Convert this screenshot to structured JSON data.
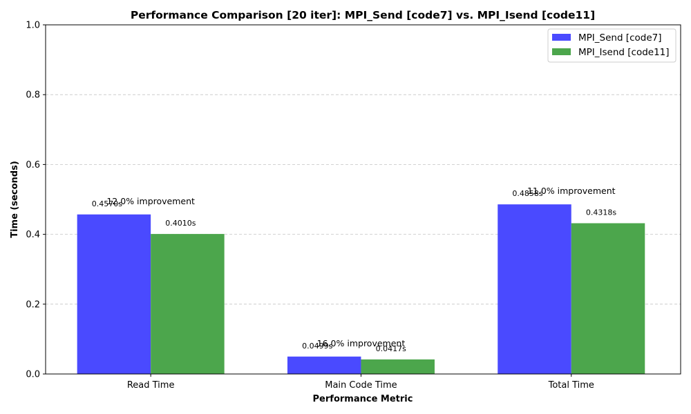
{
  "chart_data": {
    "type": "bar",
    "title": "Performance Comparison [20 iter]: MPI_Send [code7] vs. MPI_Isend [code11]",
    "xlabel": "Performance Metric",
    "ylabel": "Time (seconds)",
    "categories": [
      "Read Time",
      "Main Code Time",
      "Total Time"
    ],
    "series": [
      {
        "name": "MPI_Send [code7]",
        "color": "#4a4aff",
        "values": [
          0.457,
          0.0499,
          0.4858
        ],
        "labels": [
          "0.4570s",
          "0.0499s",
          "0.4858s"
        ]
      },
      {
        "name": "MPI_Isend [code11]",
        "color": "#4ca64c",
        "values": [
          0.401,
          0.0417,
          0.4318
        ],
        "labels": [
          "0.4010s",
          "0.0417s",
          "0.4318s"
        ]
      }
    ],
    "annotations": [
      "12.0% improvement",
      "16.0% improvement",
      "11.0% improvement"
    ],
    "ylim": [
      0,
      1.0
    ],
    "yticks": [
      0.0,
      0.2,
      0.4,
      0.6,
      0.8,
      1.0
    ],
    "ytick_labels": [
      "0.0",
      "0.2",
      "0.4",
      "0.6",
      "0.8",
      "1.0"
    ],
    "grid": true,
    "grid_axis": "y",
    "legend_position": "top-right"
  }
}
